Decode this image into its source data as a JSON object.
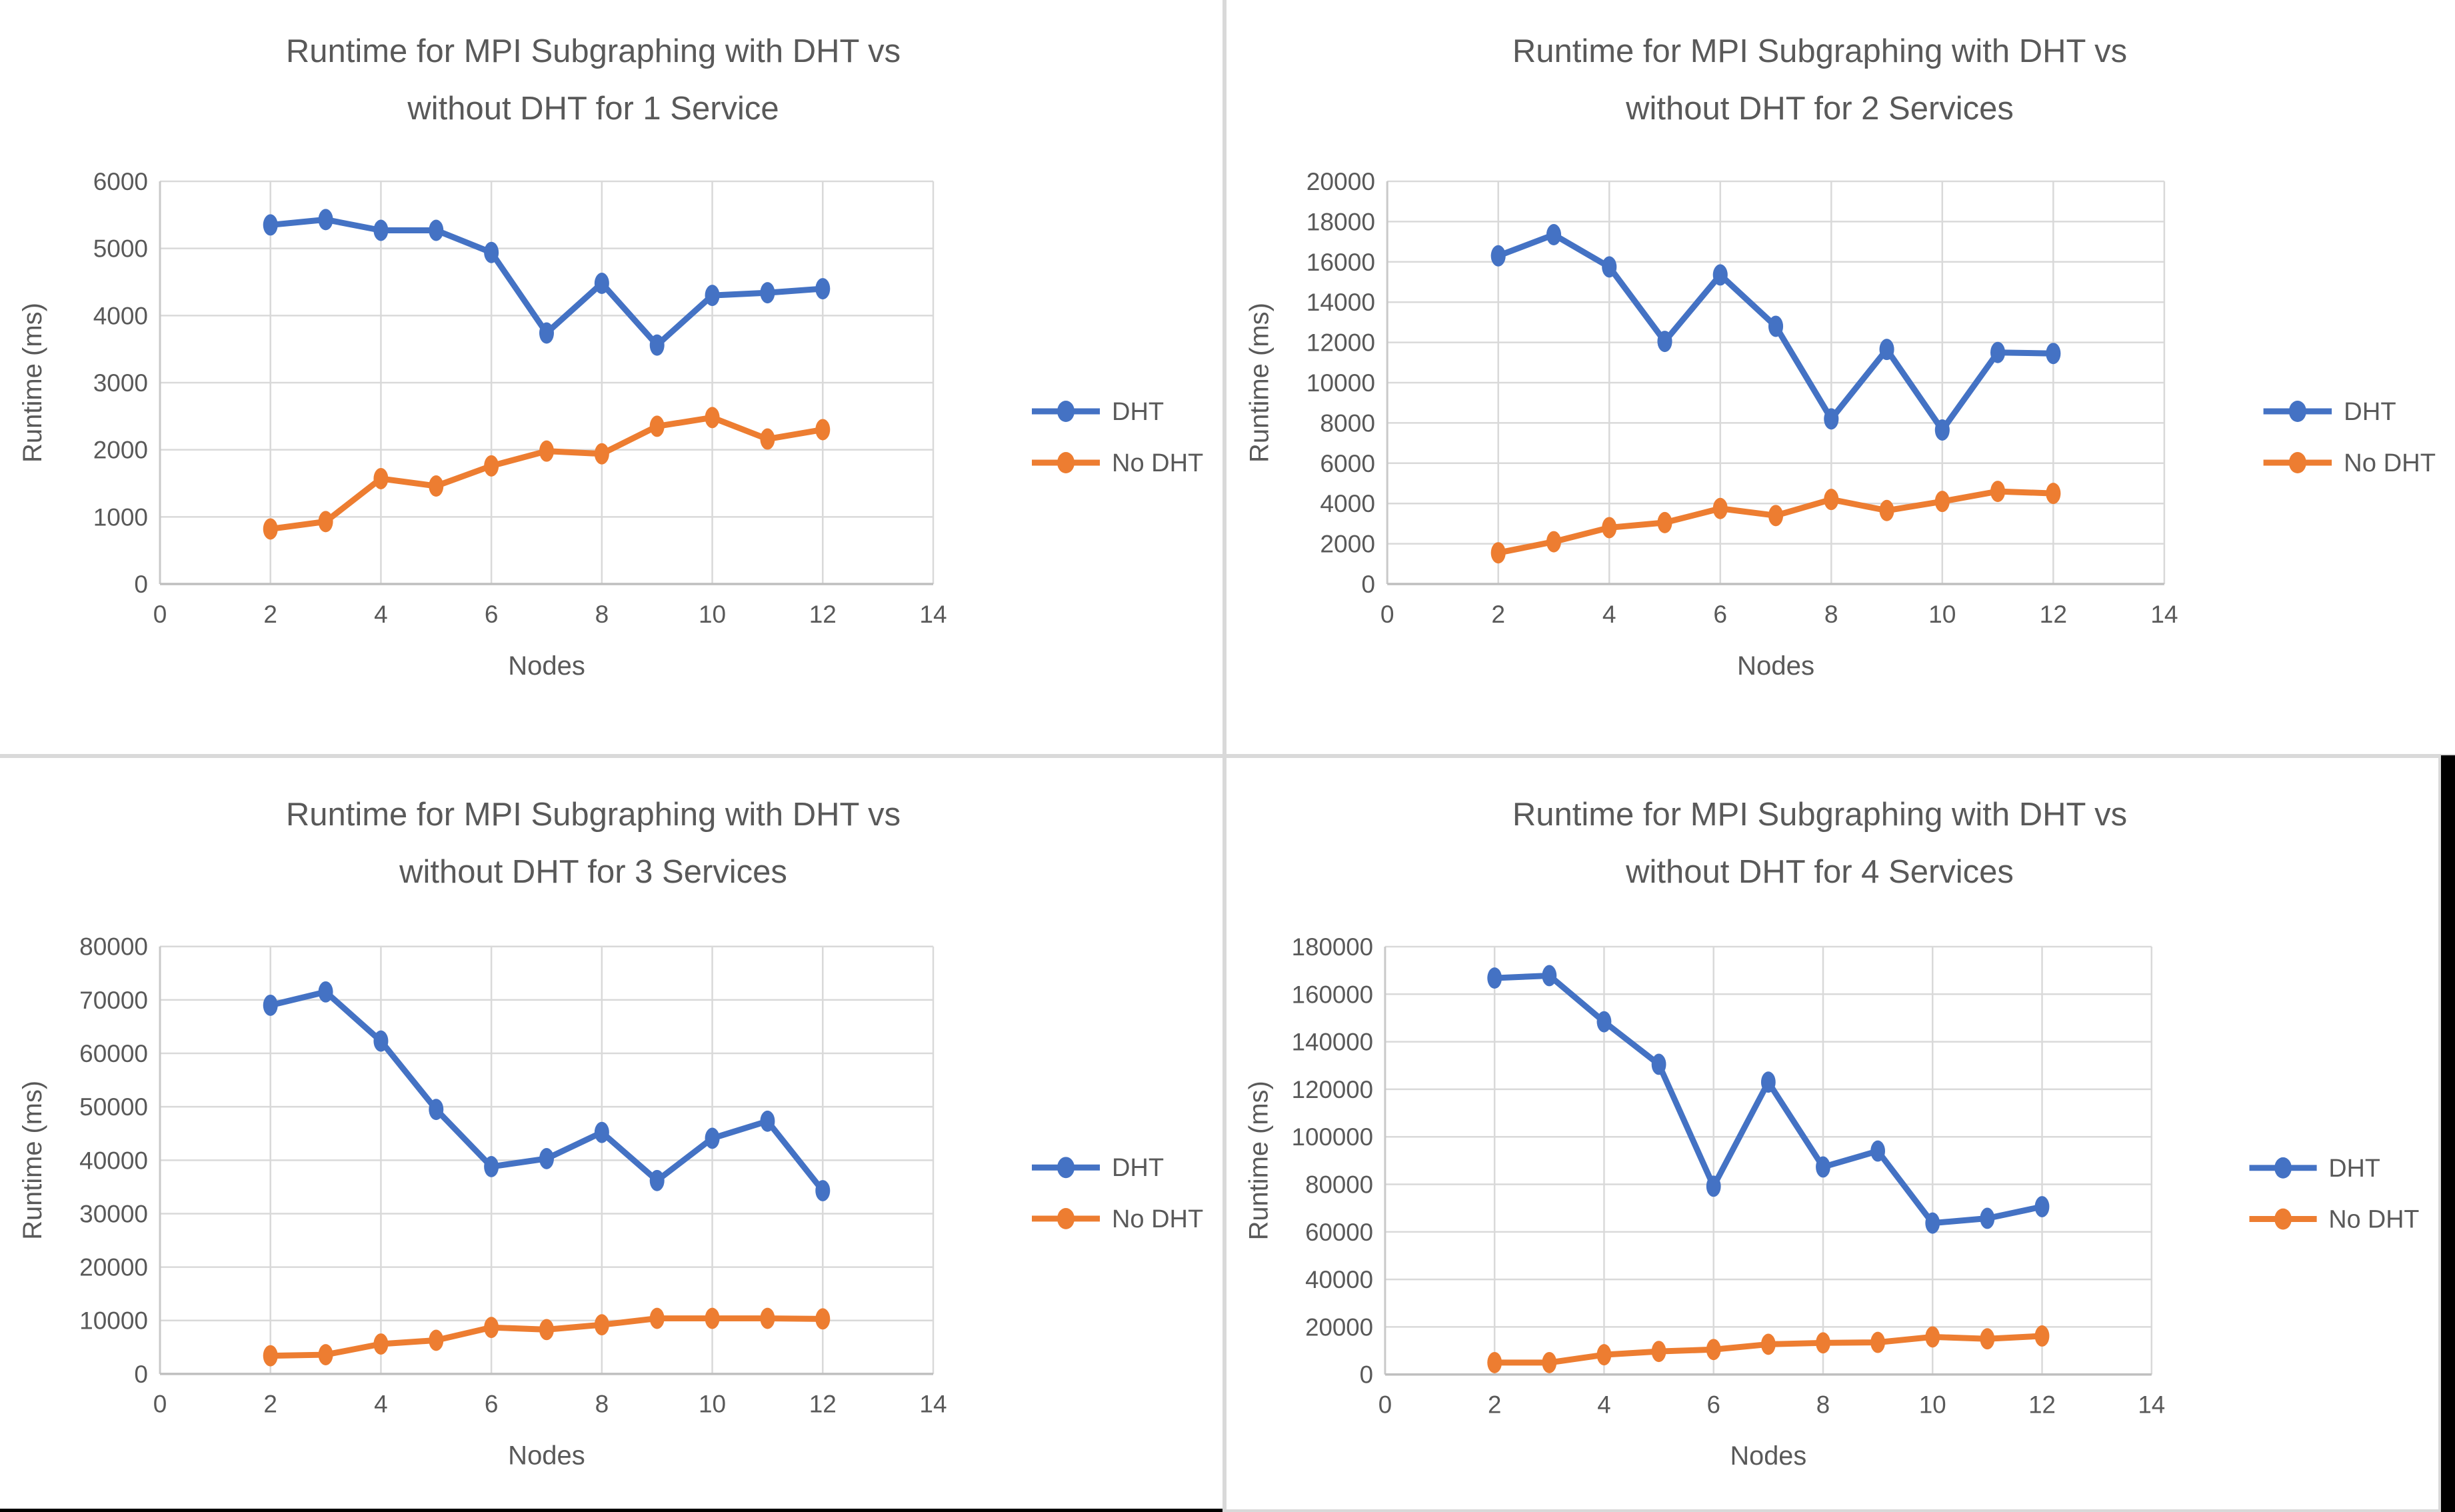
{
  "colors": {
    "dht": "#4472C4",
    "no_dht": "#ED7D31",
    "gridline": "#D9D9D9",
    "axis_line": "#BFBFBF",
    "text": "#595959",
    "panel_bg": "#FFFFFF",
    "edge_black": "#000000"
  },
  "charts": [
    {
      "title_lines": [
        "Runtime for MPI Subgraphing with DHT vs",
        "without DHT for 1 Service"
      ],
      "chart_data": {
        "type": "line",
        "x": [
          2,
          3,
          4,
          5,
          6,
          7,
          8,
          9,
          10,
          11,
          12
        ],
        "series": [
          {
            "name": "DHT",
            "color": "#4472C4",
            "values": [
              5350,
              5430,
              5270,
              5270,
              4940,
              3740,
              4480,
              3560,
              4300,
              4340,
              4400
            ]
          },
          {
            "name": "No DHT",
            "color": "#ED7D31",
            "values": [
              820,
              930,
              1570,
              1460,
              1760,
              1980,
              1940,
              2350,
              2480,
              2160,
              2300
            ]
          }
        ],
        "xlabel": "Nodes",
        "ylabel": "Runtime (ms)",
        "xlim": [
          0,
          14
        ],
        "ylim": [
          0,
          6000
        ],
        "xticks": [
          0,
          2,
          4,
          6,
          8,
          10,
          12,
          14
        ],
        "yticks": [
          0,
          1000,
          2000,
          3000,
          4000,
          5000,
          6000
        ],
        "grid": true,
        "legend_position": "right",
        "legend": [
          "DHT",
          "No DHT"
        ]
      }
    },
    {
      "title_lines": [
        "Runtime for MPI Subgraphing with DHT vs",
        "without DHT for 2 Services"
      ],
      "chart_data": {
        "type": "line",
        "x": [
          2,
          3,
          4,
          5,
          6,
          7,
          8,
          9,
          10,
          11,
          12
        ],
        "series": [
          {
            "name": "DHT",
            "color": "#4472C4",
            "values": [
              16300,
              17350,
              15750,
              12050,
              15350,
              12800,
              8200,
              11650,
              7650,
              11500,
              11450
            ]
          },
          {
            "name": "No DHT",
            "color": "#ED7D31",
            "values": [
              1550,
              2100,
              2800,
              3050,
              3750,
              3400,
              4200,
              3650,
              4100,
              4600,
              4500
            ]
          }
        ],
        "xlabel": "Nodes",
        "ylabel": "Runtime (ms)",
        "xlim": [
          0,
          14
        ],
        "ylim": [
          0,
          20000
        ],
        "xticks": [
          0,
          2,
          4,
          6,
          8,
          10,
          12,
          14
        ],
        "yticks": [
          0,
          2000,
          4000,
          6000,
          8000,
          10000,
          12000,
          14000,
          16000,
          18000,
          20000
        ],
        "grid": true,
        "legend_position": "right",
        "legend": [
          "DHT",
          "No DHT"
        ]
      }
    },
    {
      "title_lines": [
        "Runtime for MPI Subgraphing with DHT vs",
        "without DHT for 3 Services"
      ],
      "chart_data": {
        "type": "line",
        "x": [
          2,
          3,
          4,
          5,
          6,
          7,
          8,
          9,
          10,
          11,
          12
        ],
        "series": [
          {
            "name": "DHT",
            "color": "#4472C4",
            "values": [
              69000,
              71500,
              62300,
              49500,
              38800,
              40300,
              45200,
              36200,
              44100,
              47300,
              34300
            ]
          },
          {
            "name": "No DHT",
            "color": "#ED7D31",
            "values": [
              3400,
              3600,
              5600,
              6300,
              8700,
              8300,
              9200,
              10400,
              10400,
              10400,
              10300
            ]
          }
        ],
        "xlabel": "Nodes",
        "ylabel": "Runtime (ms)",
        "xlim": [
          0,
          14
        ],
        "ylim": [
          0,
          80000
        ],
        "xticks": [
          0,
          2,
          4,
          6,
          8,
          10,
          12,
          14
        ],
        "yticks": [
          0,
          10000,
          20000,
          30000,
          40000,
          50000,
          60000,
          70000,
          80000
        ],
        "grid": true,
        "legend_position": "right",
        "legend": [
          "DHT",
          "No DHT"
        ]
      }
    },
    {
      "title_lines": [
        "Runtime for MPI Subgraphing with DHT vs",
        "without DHT for 4 Services"
      ],
      "chart_data": {
        "type": "line",
        "x": [
          2,
          3,
          4,
          5,
          6,
          7,
          8,
          9,
          10,
          11,
          12
        ],
        "series": [
          {
            "name": "DHT",
            "color": "#4472C4",
            "values": [
              166800,
              167800,
              148400,
              130500,
              79200,
              123000,
              87300,
              94000,
              63700,
              65700,
              70600
            ]
          },
          {
            "name": "No DHT",
            "color": "#ED7D31",
            "values": [
              5000,
              5000,
              8300,
              9700,
              10500,
              12700,
              13300,
              13500,
              15800,
              15000,
              16200
            ]
          }
        ],
        "xlabel": "Nodes",
        "ylabel": "Runtime (ms)",
        "xlim": [
          0,
          14
        ],
        "ylim": [
          0,
          180000
        ],
        "xticks": [
          0,
          2,
          4,
          6,
          8,
          10,
          12,
          14
        ],
        "yticks": [
          0,
          20000,
          40000,
          60000,
          80000,
          100000,
          120000,
          140000,
          160000,
          180000
        ],
        "grid": true,
        "legend_position": "right",
        "legend": [
          "DHT",
          "No DHT"
        ]
      }
    }
  ]
}
